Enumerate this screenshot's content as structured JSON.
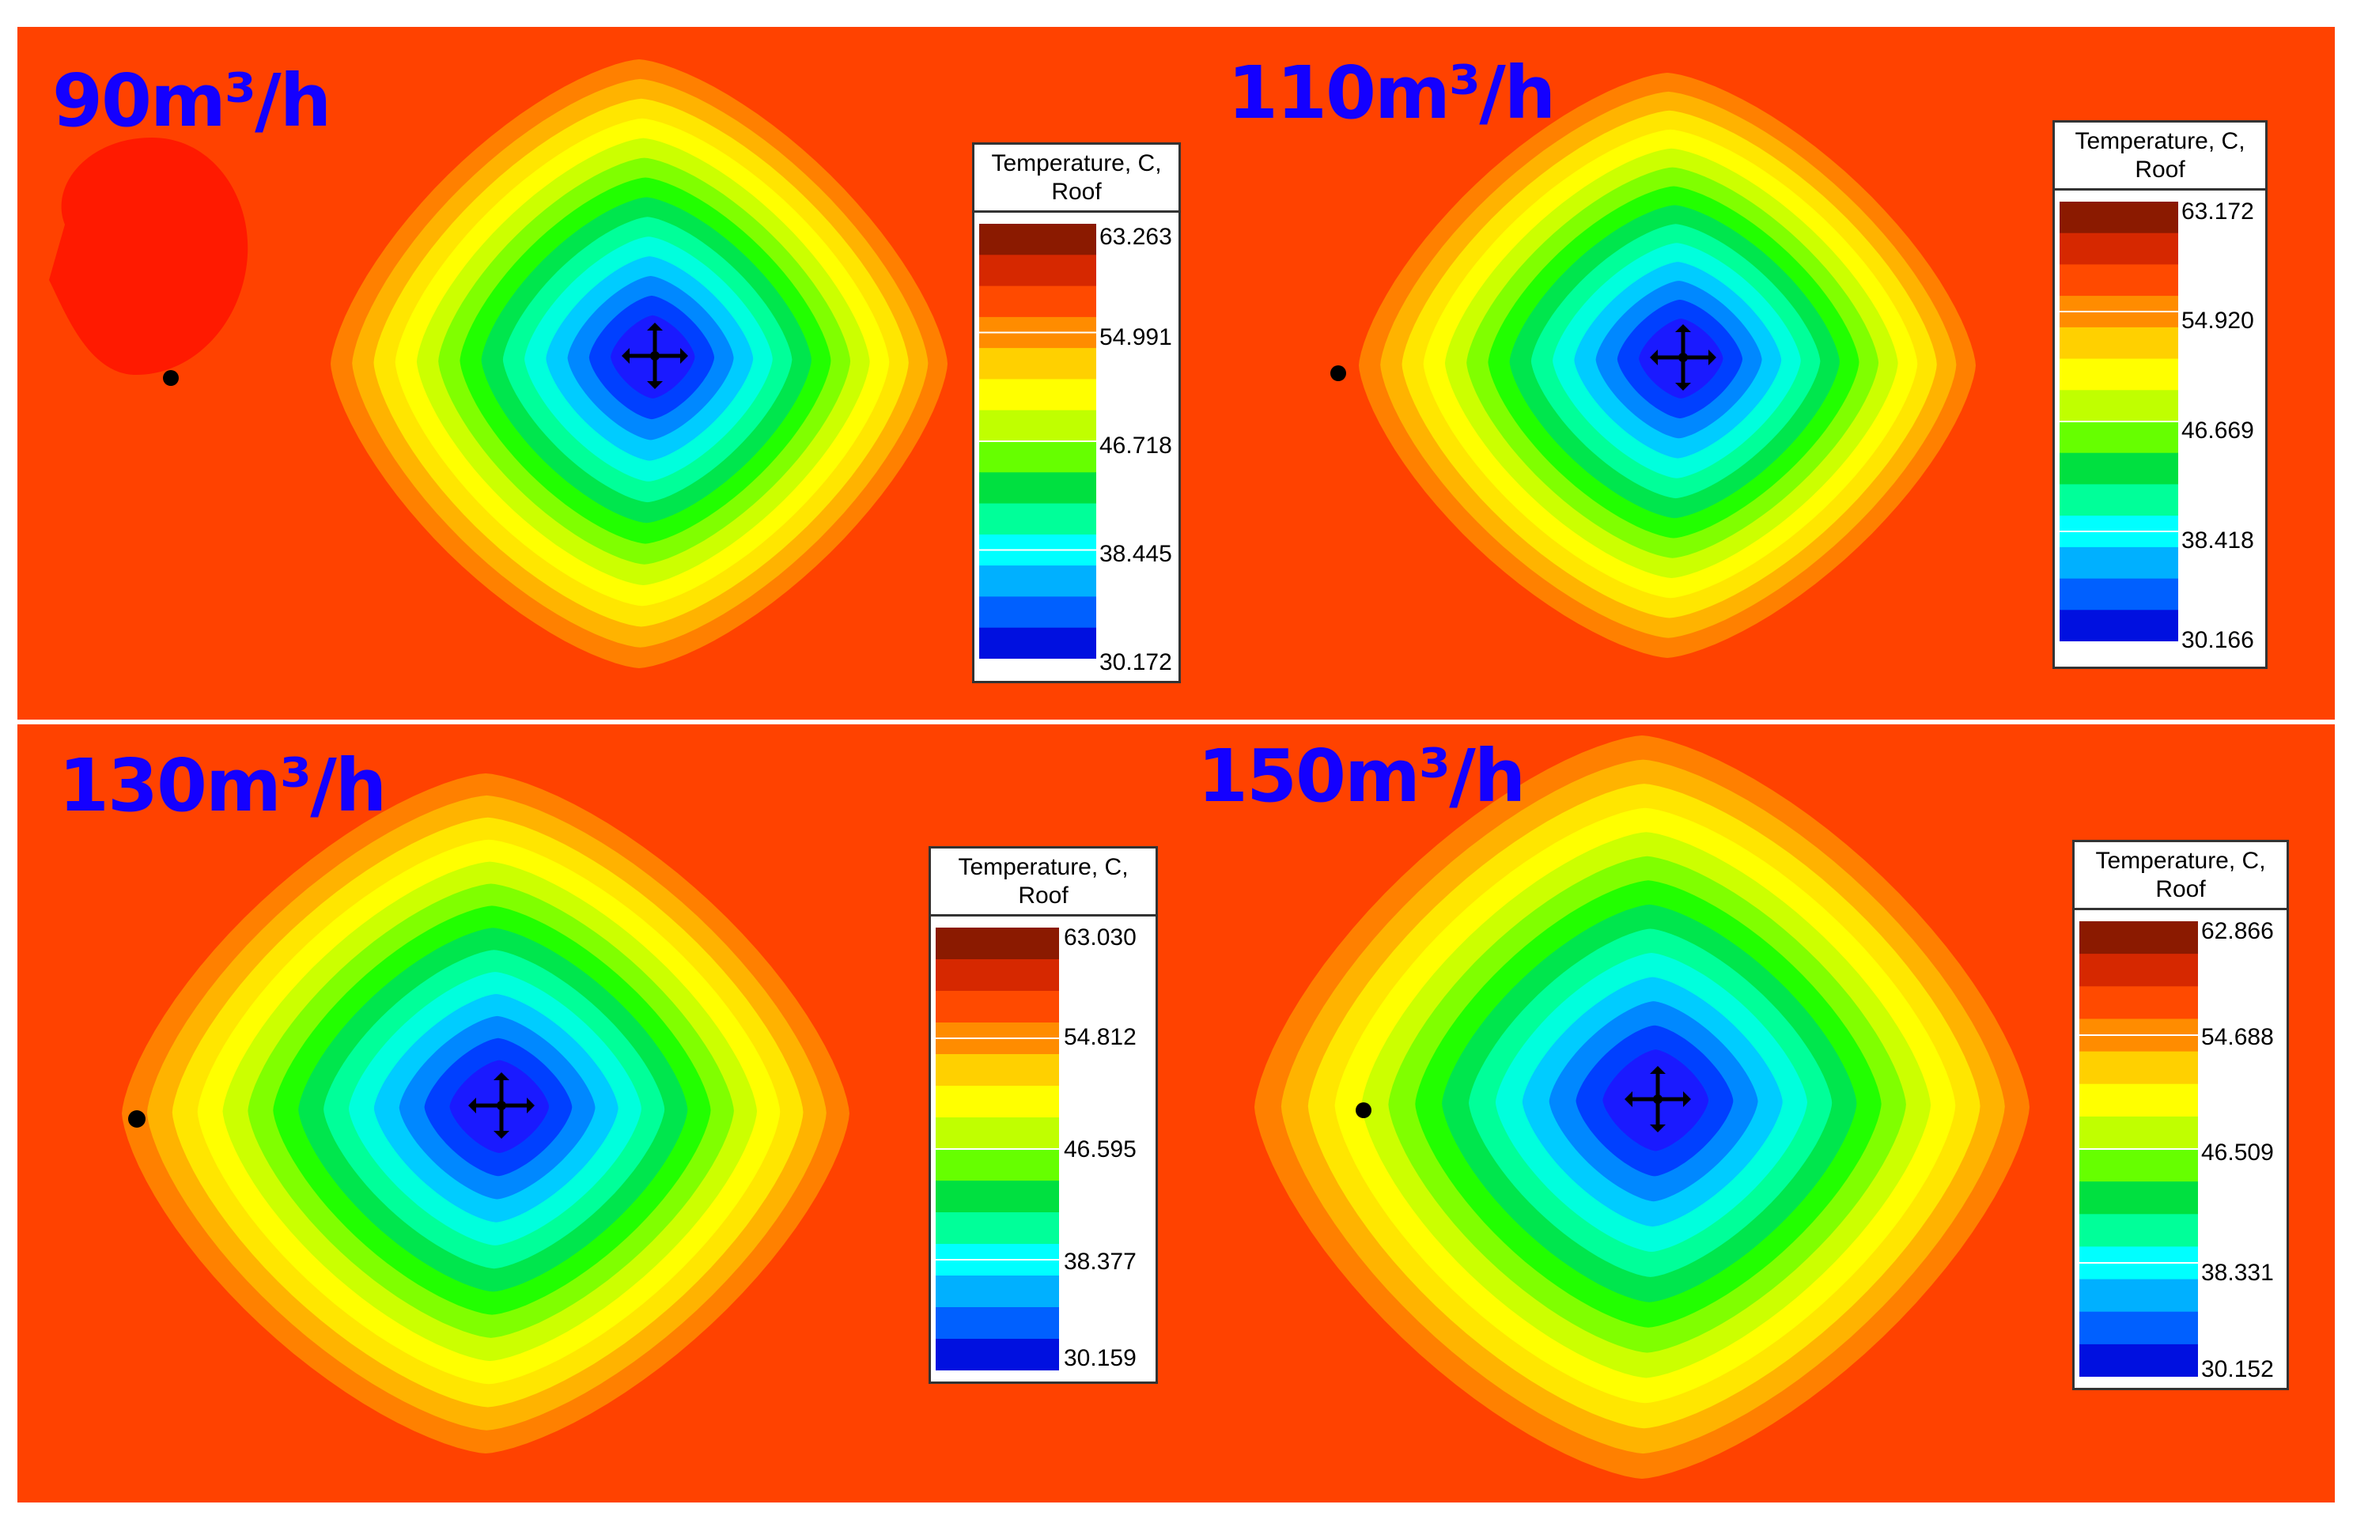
{
  "colors": {
    "background": "#ff4200",
    "hotspot": "#ff1a00",
    "label": "#1400ff",
    "bands": [
      "#ff4200",
      "#ff8000",
      "#ffb300",
      "#ffe600",
      "#ffff00",
      "#ccff00",
      "#80ff00",
      "#22ff00",
      "#00e64d",
      "#00ff99",
      "#00ffdd",
      "#00ccff",
      "#0088ff",
      "#0040ff",
      "#1a1aff"
    ]
  },
  "chart_data": [
    {
      "type": "heatmap",
      "title": "90m³/h",
      "flow_rate": "90m³/h",
      "legend": {
        "title_line1": "Temperature, C,",
        "title_line2": "Roof",
        "ticks": [
          "63.263",
          "54.991",
          "46.718",
          "38.445",
          "30.172"
        ],
        "min": 30.172,
        "max": 63.263
      },
      "has_hotspot": true
    },
    {
      "type": "heatmap",
      "title": "110m³/h",
      "flow_rate": "110m³/h",
      "legend": {
        "title_line1": "Temperature, C,",
        "title_line2": "Roof",
        "ticks": [
          "63.172",
          "54.920",
          "46.669",
          "38.418",
          "30.166"
        ],
        "min": 30.166,
        "max": 63.172
      },
      "has_hotspot": false
    },
    {
      "type": "heatmap",
      "title": "130m³/h",
      "flow_rate": "130m³/h",
      "legend": {
        "title_line1": "Temperature, C,",
        "title_line2": "Roof",
        "ticks": [
          "63.030",
          "54.812",
          "46.595",
          "38.377",
          "30.159"
        ],
        "min": 30.159,
        "max": 63.03
      },
      "has_hotspot": false
    },
    {
      "type": "heatmap",
      "title": "150m³/h",
      "flow_rate": "150m³/h",
      "legend": {
        "title_line1": "Temperature, C,",
        "title_line2": "Roof",
        "ticks": [
          "62.866",
          "54.688",
          "46.509",
          "38.331",
          "30.152"
        ],
        "min": 30.152,
        "max": 62.866
      },
      "has_hotspot": false
    }
  ]
}
